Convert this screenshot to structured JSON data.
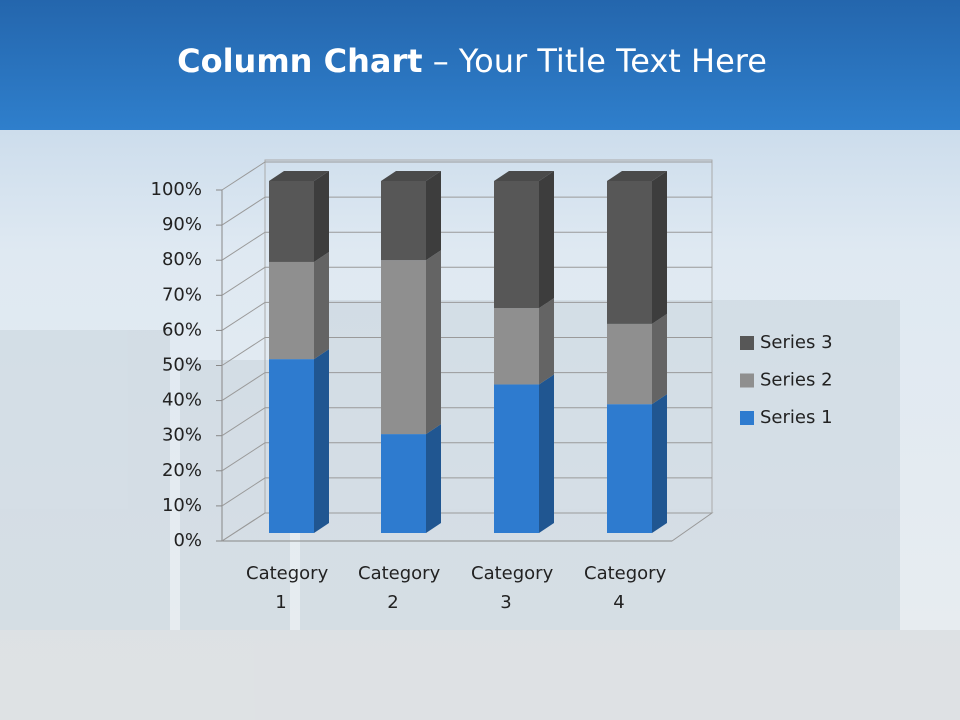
{
  "chart_data": {
    "type": "stacked_bar_3d",
    "title_parts": [
      "Column Chart",
      "– Your Title Text Here"
    ],
    "categories": [
      "Category 1",
      "Category 2",
      "Category 3",
      "Category 4"
    ],
    "series": [
      {
        "name": "Series 1",
        "color": "#2e7bcf",
        "values": [
          49.4,
          28.1,
          42.2,
          36.6
        ]
      },
      {
        "name": "Series 2",
        "color": "#8f8f8f",
        "values": [
          27.6,
          49.4,
          21.7,
          22.8
        ]
      },
      {
        "name": "Series 3",
        "color": "#575757",
        "values": [
          23.0,
          22.5,
          36.1,
          40.6
        ]
      }
    ],
    "ylim": [
      0,
      100
    ],
    "yticks": [
      {
        "value": 0,
        "label": "0%"
      },
      {
        "value": 10,
        "label": "10%"
      },
      {
        "value": 20,
        "label": "20%"
      },
      {
        "value": 30,
        "label": "30%"
      },
      {
        "value": 40,
        "label": "40%"
      },
      {
        "value": 50,
        "label": "50%"
      },
      {
        "value": 60,
        "label": "60%"
      },
      {
        "value": 70,
        "label": "70%"
      },
      {
        "value": 80,
        "label": "80%"
      },
      {
        "value": 90,
        "label": "90%"
      },
      {
        "value": 100,
        "label": "100%"
      }
    ],
    "grid": true,
    "legend": "right"
  }
}
